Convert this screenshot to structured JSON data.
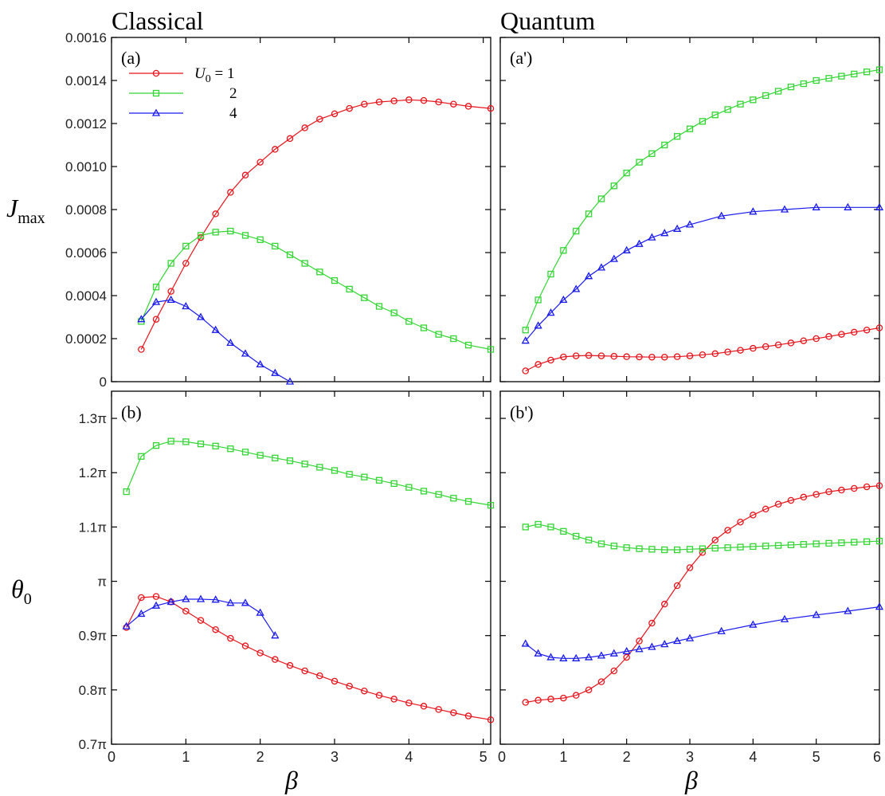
{
  "headings": {
    "left": "Classical",
    "right": "Quantum"
  },
  "axis_labels": {
    "y_top": {
      "main": "J",
      "sub": "max"
    },
    "y_bottom": {
      "main": "θ",
      "sub": "0"
    },
    "x": "β"
  },
  "colors": {
    "U0_1": "#e8141c",
    "U0_2": "#33d633",
    "U0_4": "#1a1aee"
  },
  "legend": {
    "symbol": "U",
    "symbol_sub": "0",
    "entries": [
      {
        "label": " = 1",
        "series": "U0_1",
        "marker": "circle"
      },
      {
        "label": "2",
        "series": "U0_2",
        "marker": "square"
      },
      {
        "label": "4",
        "series": "U0_4",
        "marker": "triangle"
      }
    ]
  },
  "chart_data": [
    {
      "id": "a",
      "type": "line",
      "panel_label": "(a)",
      "xlim": [
        0,
        5.1
      ],
      "ylim": [
        0,
        0.0016
      ],
      "x_ticks": [
        "0",
        "1",
        "2",
        "3",
        "4",
        "5"
      ],
      "x_tick_values": [
        0,
        1,
        2,
        3,
        4,
        5
      ],
      "y_ticks": [
        "0",
        "0.0002",
        "0.0004",
        "0.0006",
        "0.0008",
        "0.0010",
        "0.0012",
        "0.0014",
        "0.0016"
      ],
      "y_tick_values": [
        0,
        0.0002,
        0.0004,
        0.0006,
        0.0008,
        0.001,
        0.0012,
        0.0014,
        0.0016
      ],
      "series": [
        {
          "key": "U0_1",
          "marker": "circle",
          "x": [
            0.4,
            0.6,
            0.8,
            1.0,
            1.2,
            1.4,
            1.6,
            1.8,
            2.0,
            2.2,
            2.4,
            2.6,
            2.8,
            3.0,
            3.2,
            3.4,
            3.6,
            3.8,
            4.0,
            4.2,
            4.4,
            4.6,
            4.8,
            5.1
          ],
          "y": [
            0.00015,
            0.00029,
            0.00042,
            0.00055,
            0.00067,
            0.00078,
            0.00088,
            0.00096,
            0.00102,
            0.00108,
            0.00113,
            0.00118,
            0.00122,
            0.001245,
            0.00127,
            0.00129,
            0.0013,
            0.001305,
            0.00131,
            0.001307,
            0.0013,
            0.00129,
            0.00128,
            0.00127
          ]
        },
        {
          "key": "U0_2",
          "marker": "square",
          "x": [
            0.4,
            0.6,
            0.8,
            1.0,
            1.2,
            1.4,
            1.6,
            1.8,
            2.0,
            2.2,
            2.4,
            2.6,
            2.8,
            3.0,
            3.2,
            3.4,
            3.6,
            3.8,
            4.0,
            4.2,
            4.4,
            4.6,
            4.8,
            5.1
          ],
          "y": [
            0.00028,
            0.00044,
            0.00055,
            0.00063,
            0.00068,
            0.000695,
            0.0007,
            0.00068,
            0.00066,
            0.00063,
            0.00059,
            0.00055,
            0.00051,
            0.00047,
            0.00043,
            0.00039,
            0.00035,
            0.00032,
            0.00028,
            0.00025,
            0.00022,
            0.0002,
            0.00017,
            0.00015
          ]
        },
        {
          "key": "U0_4",
          "marker": "triangle",
          "x": [
            0.4,
            0.6,
            0.8,
            1.0,
            1.2,
            1.4,
            1.6,
            1.8,
            2.0,
            2.2,
            2.4
          ],
          "y": [
            0.00029,
            0.00037,
            0.00038,
            0.00035,
            0.0003,
            0.00024,
            0.00018,
            0.00013,
            8e-05,
            4e-05,
            0.0
          ]
        }
      ]
    },
    {
      "id": "a_prime",
      "type": "line",
      "panel_label": "(a')",
      "xlim": [
        0,
        6
      ],
      "ylim": [
        0,
        0.0016
      ],
      "x_ticks": [
        "0",
        "1",
        "2",
        "3",
        "4",
        "5",
        "6"
      ],
      "x_tick_values": [
        0,
        1,
        2,
        3,
        4,
        5,
        6
      ],
      "series": [
        {
          "key": "U0_1",
          "marker": "circle",
          "x": [
            0.4,
            0.6,
            0.8,
            1.0,
            1.2,
            1.4,
            1.6,
            1.8,
            2.0,
            2.2,
            2.4,
            2.6,
            2.8,
            3.0,
            3.2,
            3.4,
            3.6,
            3.8,
            4.0,
            4.2,
            4.4,
            4.6,
            4.8,
            5.0,
            5.2,
            5.4,
            5.6,
            5.8,
            6.0
          ],
          "y": [
            5e-05,
            8e-05,
            0.0001,
            0.000115,
            0.00012,
            0.000122,
            0.00012,
            0.000118,
            0.000116,
            0.000115,
            0.000114,
            0.000114,
            0.000116,
            0.00012,
            0.000125,
            0.00013,
            0.000138,
            0.000146,
            0.000155,
            0.000163,
            0.000171,
            0.00018,
            0.00019,
            0.0002,
            0.00021,
            0.00022,
            0.00023,
            0.00024,
            0.00025
          ]
        },
        {
          "key": "U0_2",
          "marker": "square",
          "x": [
            0.4,
            0.6,
            0.8,
            1.0,
            1.2,
            1.4,
            1.6,
            1.8,
            2.0,
            2.2,
            2.4,
            2.6,
            2.8,
            3.0,
            3.2,
            3.4,
            3.6,
            3.8,
            4.0,
            4.2,
            4.4,
            4.6,
            4.8,
            5.0,
            5.2,
            5.4,
            5.6,
            5.8,
            6.0
          ],
          "y": [
            0.00024,
            0.00038,
            0.0005,
            0.00061,
            0.0007,
            0.00078,
            0.00085,
            0.00091,
            0.00097,
            0.00102,
            0.00106,
            0.0011,
            0.00114,
            0.001175,
            0.00121,
            0.00124,
            0.001265,
            0.00129,
            0.00131,
            0.00133,
            0.00135,
            0.00137,
            0.001385,
            0.0014,
            0.00141,
            0.00142,
            0.00143,
            0.00144,
            0.00145
          ]
        },
        {
          "key": "U0_4",
          "marker": "triangle",
          "x": [
            0.4,
            0.6,
            0.8,
            1.0,
            1.2,
            1.4,
            1.6,
            1.8,
            2.0,
            2.2,
            2.4,
            2.6,
            2.8,
            3.0,
            3.5,
            4.0,
            4.5,
            5.0,
            5.5,
            6.0
          ],
          "y": [
            0.00019,
            0.00026,
            0.00032,
            0.00038,
            0.00043,
            0.00049,
            0.00053,
            0.00057,
            0.00061,
            0.00064,
            0.00067,
            0.00069,
            0.00071,
            0.00073,
            0.00077,
            0.00079,
            0.0008,
            0.00081,
            0.00081,
            0.00081
          ]
        }
      ]
    },
    {
      "id": "b",
      "type": "line",
      "panel_label": "(b)",
      "xlim": [
        0,
        5.1
      ],
      "ylim": [
        0.7,
        1.35
      ],
      "x_ticks": [
        "0",
        "1",
        "2",
        "3",
        "4",
        "5"
      ],
      "x_tick_values": [
        0,
        1,
        2,
        3,
        4,
        5
      ],
      "y_ticks": [
        "0.7π",
        "0.8π",
        "0.9π",
        "π",
        "1.1π",
        "1.2π",
        "1.3π"
      ],
      "y_tick_values": [
        0.7,
        0.8,
        0.9,
        1.0,
        1.1,
        1.2,
        1.3
      ],
      "series": [
        {
          "key": "U0_1",
          "marker": "circle",
          "x": [
            0.2,
            0.4,
            0.6,
            0.8,
            1.0,
            1.2,
            1.4,
            1.6,
            1.8,
            2.0,
            2.2,
            2.4,
            2.6,
            2.8,
            3.0,
            3.2,
            3.4,
            3.6,
            3.8,
            4.0,
            4.2,
            4.4,
            4.6,
            4.8,
            5.1
          ],
          "y": [
            0.915,
            0.97,
            0.972,
            0.962,
            0.945,
            0.928,
            0.911,
            0.895,
            0.881,
            0.868,
            0.856,
            0.845,
            0.835,
            0.826,
            0.816,
            0.807,
            0.798,
            0.79,
            0.783,
            0.776,
            0.77,
            0.764,
            0.758,
            0.752,
            0.745
          ]
        },
        {
          "key": "U0_2",
          "marker": "square",
          "x": [
            0.2,
            0.4,
            0.6,
            0.8,
            1.0,
            1.2,
            1.4,
            1.6,
            1.8,
            2.0,
            2.2,
            2.4,
            2.6,
            2.8,
            3.0,
            3.2,
            3.4,
            3.6,
            3.8,
            4.0,
            4.2,
            4.4,
            4.6,
            4.8,
            5.1
          ],
          "y": [
            1.165,
            1.23,
            1.25,
            1.258,
            1.257,
            1.253,
            1.249,
            1.244,
            1.238,
            1.232,
            1.227,
            1.222,
            1.216,
            1.21,
            1.204,
            1.197,
            1.192,
            1.186,
            1.18,
            1.173,
            1.166,
            1.16,
            1.153,
            1.147,
            1.14
          ]
        },
        {
          "key": "U0_4",
          "marker": "triangle",
          "x": [
            0.2,
            0.4,
            0.6,
            0.8,
            1.0,
            1.2,
            1.4,
            1.6,
            1.8,
            2.0,
            2.2
          ],
          "y": [
            0.917,
            0.94,
            0.955,
            0.962,
            0.967,
            0.967,
            0.966,
            0.96,
            0.96,
            0.942,
            0.9
          ]
        }
      ]
    },
    {
      "id": "b_prime",
      "type": "line",
      "panel_label": "(b')",
      "xlim": [
        0,
        6
      ],
      "ylim": [
        0.7,
        1.35
      ],
      "x_ticks": [
        "0",
        "1",
        "2",
        "3",
        "4",
        "5",
        "6"
      ],
      "x_tick_values": [
        0,
        1,
        2,
        3,
        4,
        5,
        6
      ],
      "series": [
        {
          "key": "U0_1",
          "marker": "circle",
          "x": [
            0.4,
            0.6,
            0.8,
            1.0,
            1.2,
            1.4,
            1.6,
            1.8,
            2.0,
            2.2,
            2.4,
            2.6,
            2.8,
            3.0,
            3.2,
            3.4,
            3.6,
            3.8,
            4.0,
            4.2,
            4.4,
            4.6,
            4.8,
            5.0,
            5.2,
            5.4,
            5.6,
            5.8,
            6.0
          ],
          "y": [
            0.777,
            0.781,
            0.783,
            0.785,
            0.79,
            0.8,
            0.815,
            0.835,
            0.86,
            0.89,
            0.923,
            0.958,
            0.992,
            1.025,
            1.053,
            1.076,
            1.094,
            1.109,
            1.122,
            1.133,
            1.142,
            1.149,
            1.155,
            1.16,
            1.165,
            1.168,
            1.171,
            1.174,
            1.176
          ]
        },
        {
          "key": "U0_2",
          "marker": "square",
          "x": [
            0.4,
            0.6,
            0.8,
            1.0,
            1.2,
            1.4,
            1.6,
            1.8,
            2.0,
            2.2,
            2.4,
            2.6,
            2.8,
            3.0,
            3.2,
            3.4,
            3.6,
            3.8,
            4.0,
            4.2,
            4.4,
            4.6,
            4.8,
            5.0,
            5.2,
            5.4,
            5.6,
            5.8,
            6.0
          ],
          "y": [
            1.1,
            1.105,
            1.1,
            1.092,
            1.083,
            1.076,
            1.069,
            1.065,
            1.062,
            1.06,
            1.059,
            1.058,
            1.058,
            1.059,
            1.06,
            1.061,
            1.062,
            1.063,
            1.064,
            1.065,
            1.066,
            1.067,
            1.068,
            1.069,
            1.07,
            1.071,
            1.072,
            1.073,
            1.074
          ]
        },
        {
          "key": "U0_4",
          "marker": "triangle",
          "x": [
            0.4,
            0.6,
            0.8,
            1.0,
            1.2,
            1.4,
            1.6,
            1.8,
            2.0,
            2.2,
            2.4,
            2.6,
            2.8,
            3.0,
            3.5,
            4.0,
            4.5,
            5.0,
            5.5,
            6.0
          ],
          "y": [
            0.885,
            0.867,
            0.86,
            0.858,
            0.858,
            0.86,
            0.863,
            0.867,
            0.871,
            0.875,
            0.879,
            0.884,
            0.89,
            0.895,
            0.908,
            0.92,
            0.93,
            0.938,
            0.945,
            0.953
          ]
        }
      ]
    }
  ]
}
